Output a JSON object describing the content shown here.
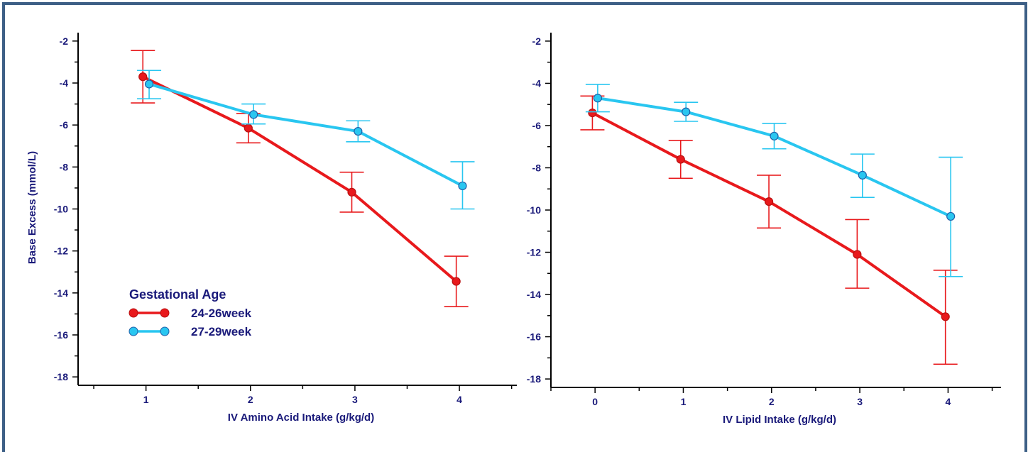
{
  "chart_data": [
    {
      "type": "line",
      "xlabel": "IV Amino Acid Intake (g/kg/d)",
      "ylabel": "Base Excess (mmol/L)",
      "xlim": [
        0.35,
        4.55
      ],
      "ylim": [
        -18.4,
        -1.6
      ],
      "x_ticks": [
        1,
        2,
        3,
        4
      ],
      "y_ticks": [
        -2,
        -4,
        -6,
        -8,
        -10,
        -12,
        -14,
        -16,
        -18
      ],
      "legend_title": "Gestational Age",
      "legend_position": "lower-left",
      "series": [
        {
          "name": "24-26week",
          "color": "#e8191c",
          "x": [
            0.97,
            1.98,
            2.97,
            3.97
          ],
          "y": [
            -3.7,
            -6.15,
            -9.2,
            -13.45
          ],
          "err_upper": [
            -2.45,
            -5.45,
            -8.25,
            -12.25
          ],
          "err_lower": [
            -4.95,
            -6.85,
            -10.15,
            -14.65
          ]
        },
        {
          "name": "27-29week",
          "color": "#29c6f0",
          "x": [
            1.03,
            2.03,
            3.03,
            4.03
          ],
          "y": [
            -4.05,
            -5.5,
            -6.3,
            -8.9
          ],
          "err_upper": [
            -3.4,
            -5.0,
            -5.8,
            -7.75
          ],
          "err_lower": [
            -4.75,
            -5.95,
            -6.8,
            -10.0
          ]
        }
      ]
    },
    {
      "type": "line",
      "xlabel": "IV Lipid Intake (g/kg/d)",
      "ylabel": "",
      "xlim": [
        -0.5,
        4.6
      ],
      "ylim": [
        -18.4,
        -1.6
      ],
      "x_ticks": [
        0,
        1,
        2,
        3,
        4
      ],
      "y_ticks": [
        -2,
        -4,
        -6,
        -8,
        -10,
        -12,
        -14,
        -16,
        -18
      ],
      "series": [
        {
          "name": "24-26week",
          "color": "#e8191c",
          "x": [
            -0.03,
            0.97,
            1.97,
            2.97,
            3.97
          ],
          "y": [
            -5.4,
            -7.6,
            -9.6,
            -12.1,
            -15.05
          ],
          "err_upper": [
            -4.6,
            -6.7,
            -8.35,
            -10.45,
            -12.85
          ],
          "err_lower": [
            -6.2,
            -8.5,
            -10.85,
            -13.7,
            -17.3
          ]
        },
        {
          "name": "27-29week",
          "color": "#29c6f0",
          "x": [
            0.03,
            1.03,
            2.03,
            3.03,
            4.03
          ],
          "y": [
            -4.7,
            -5.35,
            -6.5,
            -8.35,
            -10.3
          ],
          "err_upper": [
            -4.05,
            -4.9,
            -5.9,
            -7.35,
            -7.5
          ],
          "err_lower": [
            -5.35,
            -5.8,
            -7.1,
            -9.4,
            -13.15
          ]
        }
      ]
    }
  ]
}
